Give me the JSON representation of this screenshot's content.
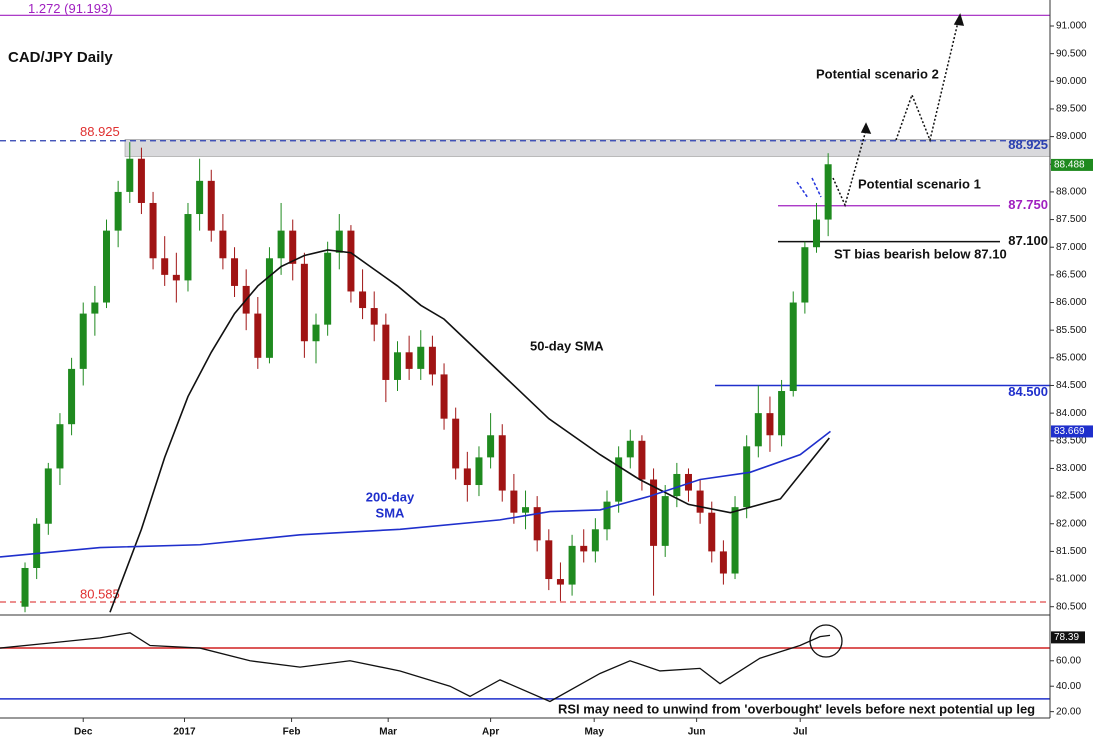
{
  "chart_data": {
    "type": "candlestick",
    "title": "CAD/JPY Daily",
    "annotations": {
      "scenario2": "Potential scenario 2",
      "scenario1": "Potential scenario 1",
      "bias": "ST bias bearish below 87.10",
      "sma50": "50-day SMA",
      "sma200_line1": "200-day",
      "sma200_line2": "SMA",
      "rsi_note": "RSI may need to unwind from 'overbought' levels before next potential up leg"
    },
    "xlim": [
      -2.15,
      88.06
    ],
    "xticks": [
      {
        "value": 5,
        "label": "Dec"
      },
      {
        "value": 13.7,
        "label": "2017"
      },
      {
        "value": 22.9,
        "label": "Feb"
      },
      {
        "value": 31.2,
        "label": "Mar"
      },
      {
        "value": 40,
        "label": "Apr"
      },
      {
        "value": 48.9,
        "label": "May"
      },
      {
        "value": 57.7,
        "label": "Jun"
      },
      {
        "value": 66.6,
        "label": "Jul"
      }
    ],
    "ylim": [
      80.35,
      91.47
    ],
    "yticks": [
      {
        "value": 80.5,
        "label": "80.500"
      },
      {
        "value": 81,
        "label": "81.000"
      },
      {
        "value": 81.5,
        "label": "81.500"
      },
      {
        "value": 82,
        "label": "82.000"
      },
      {
        "value": 82.5,
        "label": "82.500"
      },
      {
        "value": 83,
        "label": "83.000"
      },
      {
        "value": 83.5,
        "label": "83.500"
      },
      {
        "value": 84,
        "label": "84.000"
      },
      {
        "value": 84.5,
        "label": "84.500"
      },
      {
        "value": 85,
        "label": "85.000"
      },
      {
        "value": 85.5,
        "label": "85.500"
      },
      {
        "value": 86,
        "label": "86.000"
      },
      {
        "value": 86.5,
        "label": "86.500"
      },
      {
        "value": 87,
        "label": "87.000"
      },
      {
        "value": 87.5,
        "label": "87.500"
      },
      {
        "value": 88,
        "label": "88.000"
      },
      {
        "value": 88.5,
        "label": "88.500"
      },
      {
        "value": 89,
        "label": "89.000"
      },
      {
        "value": 89.5,
        "label": "89.500"
      },
      {
        "value": 90,
        "label": "90.000"
      },
      {
        "value": 90.5,
        "label": "90.500"
      },
      {
        "value": 91,
        "label": "91.000"
      }
    ],
    "up_color": "#1f8a1f",
    "down_color": "#a01414",
    "open": [
      80.5,
      81.2,
      82.0,
      83.0,
      83.8,
      84.8,
      85.8,
      86.0,
      87.3,
      88.0,
      88.6,
      87.8,
      86.8,
      86.5,
      86.4,
      87.6,
      88.2,
      87.3,
      86.8,
      86.3,
      85.8,
      85.0,
      86.8,
      87.3,
      86.7,
      85.3,
      85.6,
      86.9,
      87.3,
      86.2,
      85.9,
      85.6,
      84.6,
      85.1,
      84.8,
      85.2,
      84.7,
      83.9,
      83.0,
      82.7,
      83.2,
      83.6,
      82.6,
      82.2,
      82.3,
      81.7,
      81.0,
      80.9,
      81.6,
      81.5,
      81.9,
      82.4,
      83.2,
      83.5,
      82.8,
      81.6,
      82.5,
      82.9,
      82.6,
      82.2,
      81.5,
      81.1,
      82.3,
      83.4,
      84.0,
      83.6,
      84.4,
      86.0,
      87.0,
      87.5
    ],
    "high": [
      81.3,
      82.1,
      83.1,
      84.0,
      85.0,
      86.0,
      86.3,
      87.5,
      88.2,
      88.9,
      88.8,
      88.0,
      87.2,
      86.9,
      87.8,
      88.6,
      88.4,
      87.6,
      87.0,
      86.6,
      86.1,
      87.0,
      87.8,
      87.5,
      86.9,
      85.8,
      87.1,
      87.6,
      87.4,
      86.6,
      86.2,
      85.8,
      85.3,
      85.4,
      85.5,
      85.4,
      84.9,
      84.1,
      83.3,
      83.4,
      84.0,
      83.8,
      82.9,
      82.6,
      82.5,
      81.9,
      81.3,
      81.8,
      81.9,
      82.1,
      82.6,
      83.4,
      83.7,
      83.6,
      83.0,
      82.7,
      83.1,
      83.0,
      82.8,
      82.4,
      81.7,
      82.5,
      83.6,
      84.5,
      84.3,
      84.6,
      86.2,
      87.1,
      87.8,
      88.7
    ],
    "low": [
      80.4,
      81.0,
      81.8,
      82.7,
      83.6,
      84.5,
      85.4,
      85.9,
      87.0,
      87.8,
      87.6,
      86.6,
      86.3,
      86.0,
      86.2,
      87.3,
      87.1,
      86.6,
      86.1,
      85.5,
      84.8,
      84.9,
      86.5,
      86.4,
      85.0,
      84.9,
      85.4,
      86.6,
      86.0,
      85.7,
      85.3,
      84.2,
      84.4,
      84.6,
      84.6,
      84.5,
      83.7,
      82.8,
      82.4,
      82.5,
      83.0,
      82.4,
      82.0,
      81.9,
      81.5,
      80.8,
      80.6,
      80.7,
      81.3,
      81.3,
      81.7,
      82.2,
      83.0,
      82.6,
      80.7,
      81.4,
      82.3,
      82.4,
      82.0,
      81.3,
      80.9,
      81.0,
      82.1,
      83.2,
      83.3,
      83.4,
      84.3,
      85.8,
      86.9,
      87.2
    ],
    "close": [
      81.2,
      82.0,
      83.0,
      83.8,
      84.8,
      85.8,
      86.0,
      87.3,
      88.0,
      88.6,
      87.8,
      86.8,
      86.5,
      86.4,
      87.6,
      88.2,
      87.3,
      86.8,
      86.3,
      85.8,
      85.0,
      86.8,
      87.3,
      86.7,
      85.3,
      85.6,
      86.9,
      87.3,
      86.2,
      85.9,
      85.6,
      84.6,
      85.1,
      84.8,
      85.2,
      84.7,
      83.9,
      83.0,
      82.7,
      83.2,
      83.6,
      82.6,
      82.2,
      82.3,
      81.7,
      81.0,
      80.9,
      81.6,
      81.5,
      81.9,
      82.4,
      83.2,
      83.5,
      82.8,
      81.6,
      82.5,
      82.9,
      82.6,
      82.2,
      81.5,
      81.1,
      82.3,
      83.4,
      84.0,
      83.6,
      84.4,
      86.0,
      87.0,
      87.5,
      88.5
    ],
    "series": [
      {
        "color": "#111111",
        "x": [
          7.3,
          10,
          12,
          14,
          16,
          18,
          20,
          22,
          24,
          26,
          28,
          30,
          32,
          34,
          36,
          38,
          40,
          42,
          45,
          49.4,
          52.8,
          57,
          60.6,
          64.9,
          69.1
        ],
        "values": [
          80.4,
          81.9,
          83.2,
          84.3,
          85.1,
          85.8,
          86.3,
          86.65,
          86.85,
          86.95,
          86.9,
          86.6,
          86.3,
          85.95,
          85.7,
          85.3,
          84.9,
          84.5,
          83.9,
          83.25,
          82.8,
          82.35,
          82.2,
          82.45,
          83.55
        ]
      },
      {
        "color": "#1f2fcc",
        "x": [
          -2.15,
          6.44,
          15.03,
          23.63,
          32.22,
          40.8,
          45.1,
          49.4,
          53.7,
          58.0,
          62.3,
          66.6,
          69.2
        ],
        "values": [
          81.4,
          81.57,
          81.62,
          81.8,
          81.9,
          82.07,
          82.22,
          82.25,
          82.5,
          82.8,
          82.93,
          83.25,
          83.67
        ]
      }
    ],
    "zone": [
      88.64,
      88.95
    ],
    "zone_color": "#d9d9dc",
    "levels": [
      {
        "value": 91.193,
        "label": "1.272 (91.193)",
        "color": "#a020c0",
        "style": "solid"
      },
      {
        "value": 88.925,
        "color": "#2b3fb0",
        "style": "dashed"
      },
      {
        "value": 87.75,
        "label": "87.750",
        "color": "#a020c0",
        "style": "solid"
      },
      {
        "value": 87.1,
        "label": "87.100",
        "color": "#111111",
        "style": "solid"
      },
      {
        "value": 84.5,
        "label": "84.500",
        "color": "#1f2fcc",
        "style": "solid"
      },
      {
        "value": 80.585,
        "color": "#e04a4a",
        "style": "dashed"
      }
    ],
    "current_labels": [
      {
        "value": 88.488,
        "color": "#1f8a1f"
      },
      {
        "value": 83.669,
        "color": "#1f2fcc"
      }
    ],
    "rsi": {
      "ylim": [
        15,
        96
      ],
      "yticks": [
        {
          "value": 60,
          "label": "60.00"
        },
        {
          "value": 40,
          "label": "40.00"
        },
        {
          "value": 20,
          "label": "20.00"
        }
      ],
      "overbought": 70,
      "oversold": 30,
      "current": 78.39,
      "color": "#111111",
      "x": [
        -2.15,
        2.15,
        6.44,
        9.02,
        10.74,
        15.03,
        19.33,
        23.63,
        27.92,
        32.22,
        36.51,
        38.23,
        40.81,
        45.1,
        49.4,
        51.98,
        54.55,
        57.99,
        59.71,
        63.14,
        66.58,
        68.3,
        69.16
      ],
      "values": [
        70,
        74,
        78,
        82,
        72,
        70,
        60,
        55,
        60,
        52,
        40,
        32,
        45,
        28,
        50,
        60,
        52,
        54,
        42,
        62,
        72,
        79,
        80
      ]
    }
  }
}
